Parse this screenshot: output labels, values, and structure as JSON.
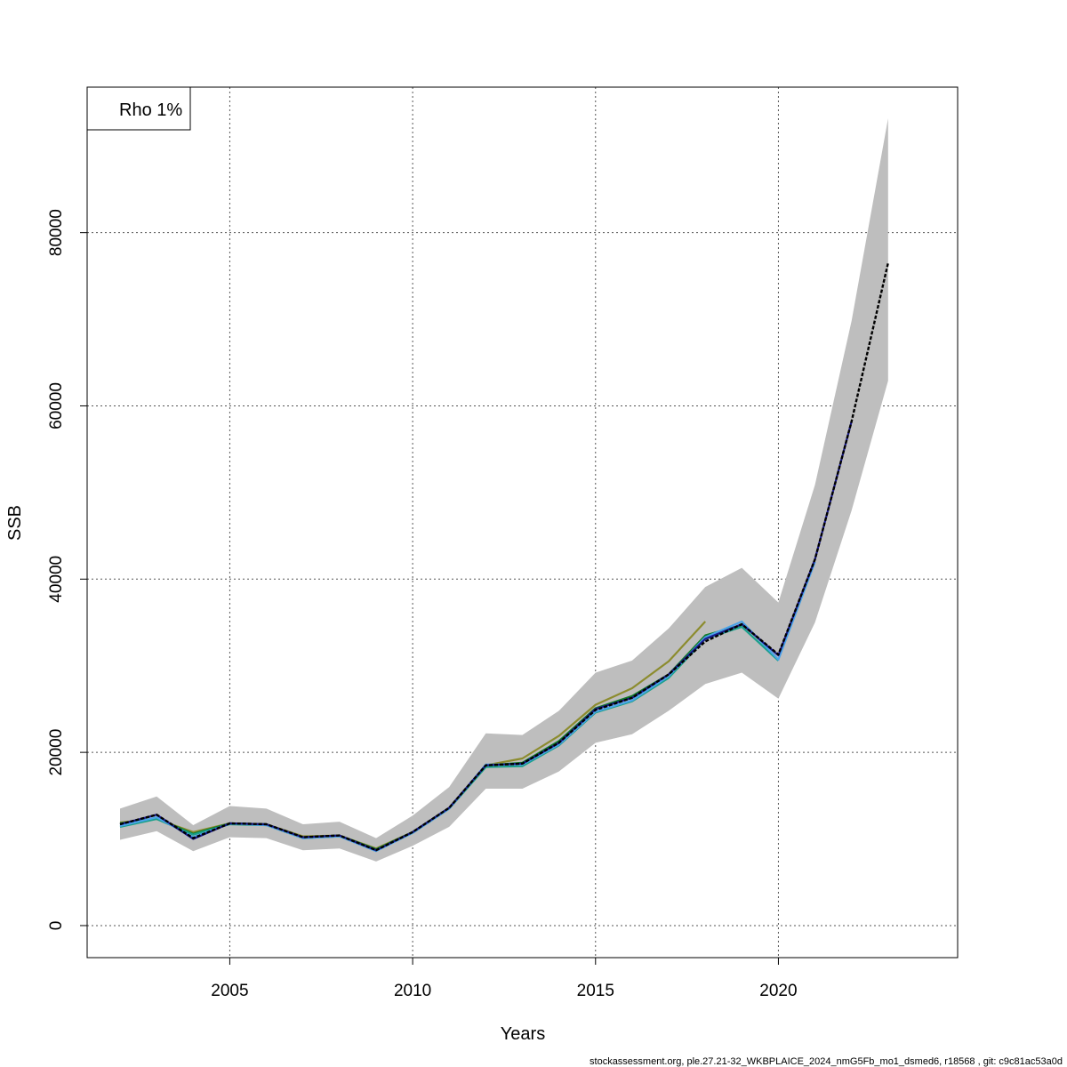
{
  "chart_data": {
    "type": "line",
    "xlabel": "Years",
    "ylabel": "SSB",
    "xlim": [
      2001.1,
      2024.9
    ],
    "ylim": [
      -3700,
      96800
    ],
    "x_ticks": [
      2005,
      2010,
      2015,
      2020
    ],
    "y_ticks": [
      0,
      20000,
      40000,
      60000,
      80000
    ],
    "grid": true,
    "legend": {
      "text": "Rho 1%",
      "placement": "top-left"
    },
    "band": {
      "color": "#bebebe",
      "x": [
        2002,
        2003,
        2004,
        2005,
        2006,
        2007,
        2008,
        2009,
        2010,
        2011,
        2012,
        2013,
        2014,
        2015,
        2016,
        2017,
        2018,
        2019,
        2020,
        2021,
        2022,
        2023
      ],
      "lower": [
        9900,
        10900,
        8600,
        10200,
        10100,
        8700,
        8900,
        7400,
        9200,
        11400,
        15800,
        15800,
        17800,
        21100,
        22100,
        24800,
        27900,
        29200,
        26200,
        35000,
        47900,
        62900
      ],
      "upper": [
        13500,
        14900,
        11600,
        13800,
        13500,
        11700,
        12000,
        10100,
        12700,
        16000,
        22200,
        22000,
        24800,
        29200,
        30600,
        34300,
        39100,
        41300,
        37300,
        50900,
        69800,
        93200
      ]
    },
    "series": [
      {
        "color": "#000000",
        "dashed": true,
        "x": [
          2002,
          2003,
          2004,
          2005,
          2006,
          2007,
          2008,
          2009,
          2010,
          2011,
          2012,
          2013,
          2014,
          2015,
          2016,
          2017,
          2018,
          2019,
          2020,
          2021,
          2022,
          2023
        ],
        "values": [
          11700,
          12800,
          10100,
          11800,
          11700,
          10200,
          10400,
          8700,
          10800,
          13600,
          18500,
          18700,
          21100,
          24900,
          26300,
          29000,
          32800,
          34800,
          31300,
          42300,
          58200,
          76500
        ]
      },
      {
        "color": "#1a1a8f",
        "x": [
          2002,
          2003,
          2004,
          2005,
          2006,
          2007,
          2008,
          2009,
          2010,
          2011,
          2012,
          2013,
          2014,
          2015,
          2016,
          2017,
          2018,
          2019,
          2020,
          2021,
          2022
        ],
        "values": [
          11700,
          12800,
          10000,
          11800,
          11700,
          10200,
          10400,
          8700,
          10800,
          13600,
          18500,
          18700,
          21100,
          25000,
          26300,
          29000,
          33100,
          34800,
          31200,
          42300,
          58200
        ]
      },
      {
        "color": "#4aa3e8",
        "x": [
          2002,
          2003,
          2004,
          2005,
          2006,
          2007,
          2008,
          2009,
          2010,
          2011,
          2012,
          2013,
          2014,
          2015,
          2016,
          2017,
          2018,
          2019,
          2020,
          2021
        ],
        "values": [
          11500,
          12500,
          10200,
          11800,
          11600,
          10100,
          10300,
          8600,
          10700,
          13500,
          18600,
          18600,
          20900,
          24700,
          26000,
          28800,
          33300,
          35100,
          30700,
          42000
        ]
      },
      {
        "color": "#1aa08c",
        "x": [
          2002,
          2003,
          2004,
          2005,
          2006,
          2007,
          2008,
          2009,
          2010,
          2011,
          2012,
          2013,
          2014,
          2015,
          2016,
          2017,
          2018,
          2019,
          2020
        ],
        "values": [
          11400,
          12300,
          10500,
          11700,
          11600,
          10100,
          10300,
          8700,
          10700,
          13500,
          18300,
          18400,
          20800,
          24600,
          25900,
          28600,
          33100,
          34500,
          30600
        ]
      },
      {
        "color": "#0f7a2a",
        "x": [
          2002,
          2003,
          2004,
          2005,
          2006,
          2007,
          2008,
          2009,
          2010,
          2011,
          2012,
          2013,
          2014,
          2015,
          2016,
          2017,
          2018,
          2019
        ],
        "values": [
          11800,
          12400,
          10600,
          11800,
          11700,
          10200,
          10400,
          8800,
          10800,
          13600,
          18500,
          18800,
          21300,
          25100,
          26500,
          29000,
          33500,
          34700
        ]
      },
      {
        "color": "#8c8c2e",
        "x": [
          2002,
          2003,
          2004,
          2005,
          2006,
          2007,
          2008,
          2009,
          2010,
          2011,
          2012,
          2013,
          2014,
          2015,
          2016,
          2017,
          2018
        ],
        "values": [
          11900,
          12300,
          10800,
          11800,
          11700,
          10300,
          10400,
          8900,
          10800,
          13600,
          18500,
          19300,
          21900,
          25500,
          27400,
          30500,
          35100
        ]
      }
    ]
  },
  "footer": "stockassessment.org, ple.27.21-32_WKBPLAICE_2024_nmG5Fb_mo1_dsmed6, r18568 , git: c9c81ac53a0d"
}
